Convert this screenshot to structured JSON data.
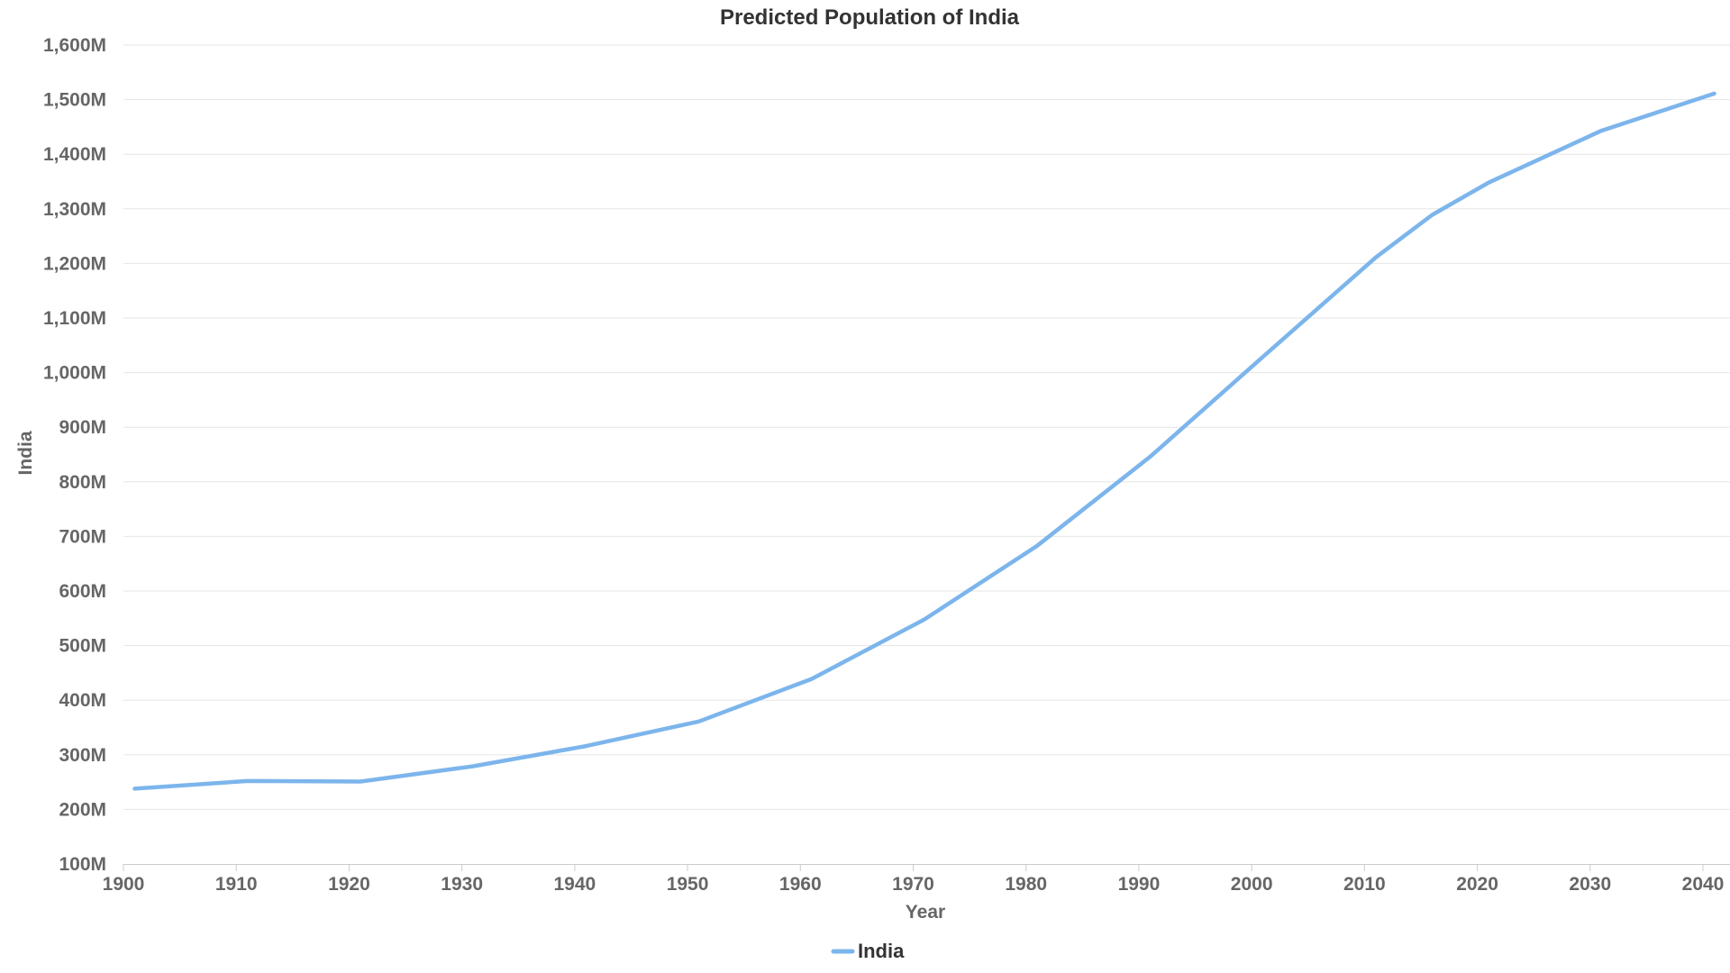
{
  "chart_data": {
    "type": "line",
    "title": "Predicted Population of India",
    "xlabel": "Year",
    "ylabel": "India",
    "xlim": [
      1900,
      2042
    ],
    "ylim": [
      100,
      1600
    ],
    "x_ticks": [
      "1900",
      "1910",
      "1920",
      "1930",
      "1940",
      "1950",
      "1960",
      "1970",
      "1980",
      "1990",
      "2000",
      "2010",
      "2020",
      "2030",
      "2040"
    ],
    "y_ticks": [
      "100M",
      "200M",
      "300M",
      "400M",
      "500M",
      "600M",
      "700M",
      "800M",
      "900M",
      "1,000M",
      "1,100M",
      "1,200M",
      "1,300M",
      "1,400M",
      "1,500M",
      "1,600M"
    ],
    "grid": true,
    "legend_position": "bottom-center",
    "series": [
      {
        "name": "India",
        "color": "#7cb5ec",
        "x": [
          1901,
          1911,
          1921,
          1931,
          1941,
          1951,
          1961,
          1971,
          1981,
          1991,
          2001,
          2011,
          2016,
          2021,
          2031,
          2041
        ],
        "values": [
          238,
          252,
          251,
          279,
          316,
          361,
          439,
          548,
          683,
          846,
          1029,
          1211,
          1289,
          1348,
          1443,
          1511
        ]
      }
    ]
  }
}
